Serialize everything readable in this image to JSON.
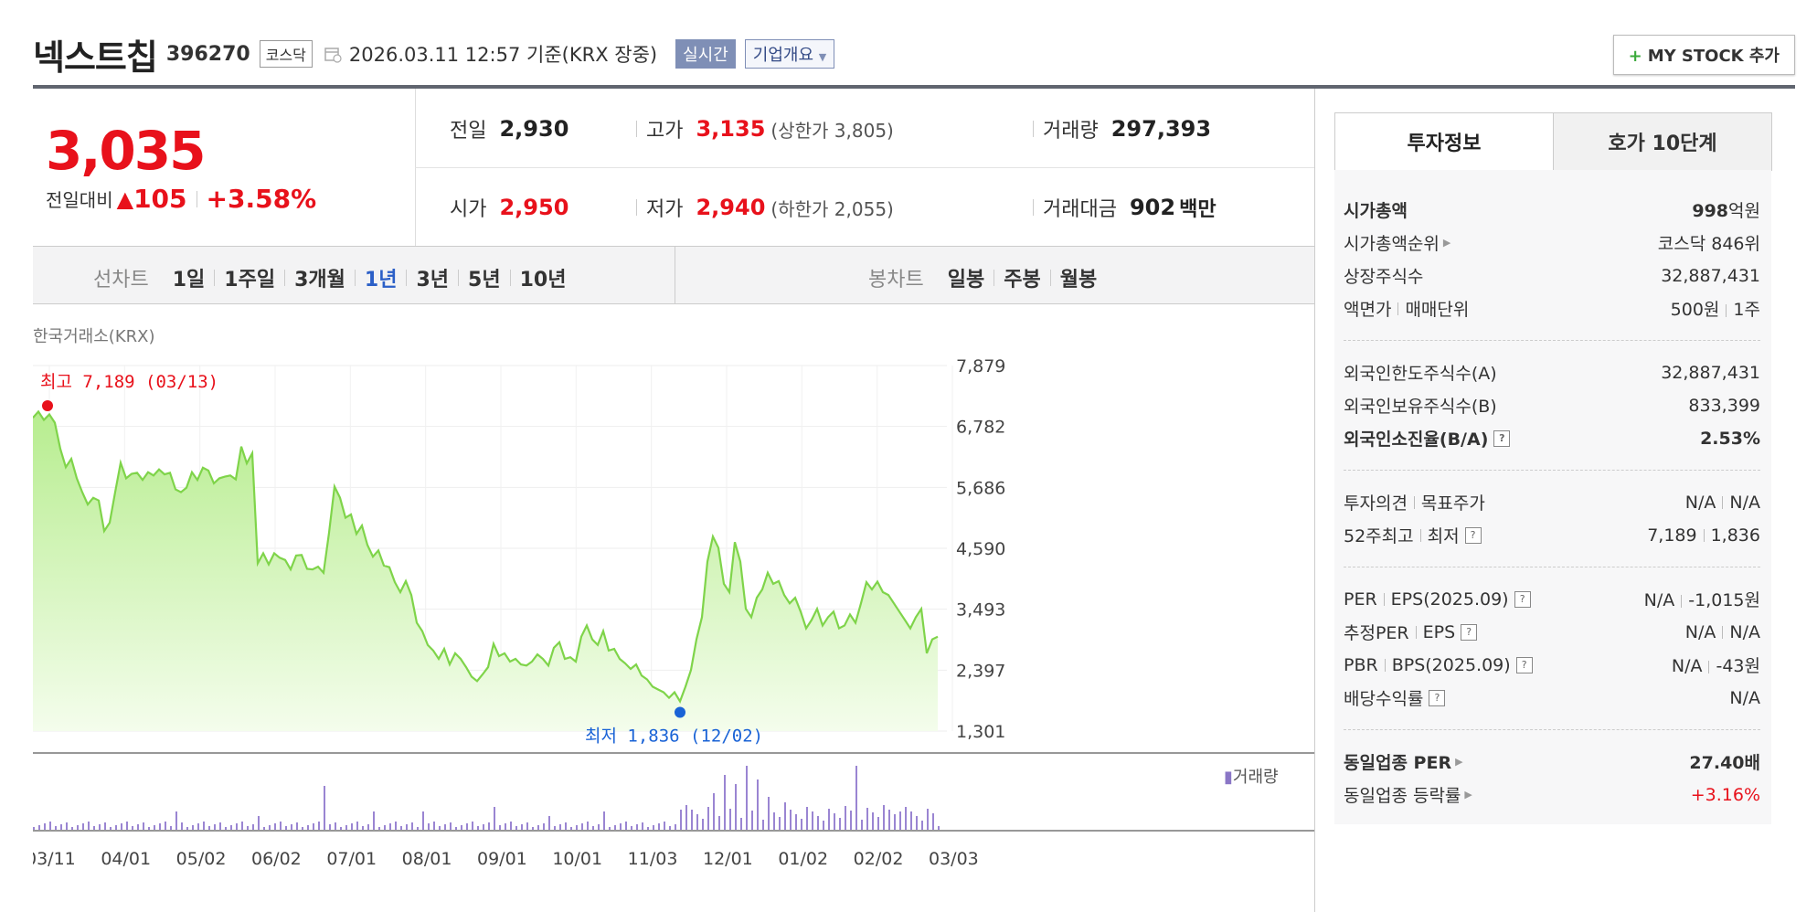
{
  "header": {
    "name": "넥스트칩",
    "code": "396270",
    "market": "코스닥",
    "date": "2026.03.11 12:57",
    "basis": "기준(KRX 장중)",
    "realtime": "실시간",
    "company": "기업개요",
    "mystock_plus": "+",
    "mystock": "MY STOCK 추가"
  },
  "price": {
    "current": "3,035",
    "change_label": "전일대비",
    "change_arrow": "▲",
    "change_amt": "105",
    "change_pct": "+3.58%",
    "prev_label": "전일",
    "prev": "2,930",
    "high_label": "고가",
    "high": "3,135",
    "upper_label": "(상한가",
    "upper": "3,805)",
    "volume_label": "거래량",
    "volume": "297,393",
    "open_label": "시가",
    "open": "2,950",
    "low_label": "저가",
    "low": "2,940",
    "lower_label": "(하한가",
    "lower": "2,055)",
    "amount_label": "거래대금",
    "amount": "902",
    "amount_unit": "백만"
  },
  "periods": {
    "line_label": "선차트",
    "line": [
      "1일",
      "1주일",
      "3개월",
      "1년",
      "3년",
      "5년",
      "10년"
    ],
    "candle_label": "봉차트",
    "candle": [
      "일봉",
      "주봉",
      "월봉"
    ]
  },
  "chart_source": "한국거래소(KRX)",
  "chart_data": {
    "type": "area",
    "y_ticks": [
      "7,879",
      "6,782",
      "5,686",
      "4,590",
      "3,493",
      "2,397",
      "1,301"
    ],
    "ylim": [
      1301,
      7879
    ],
    "x_ticks": [
      "03/11",
      "04/01",
      "05/02",
      "06/02",
      "07/01",
      "08/01",
      "09/01",
      "10/01",
      "11/03",
      "12/01",
      "01/02",
      "02/02",
      "03/03"
    ],
    "max_label": "최고 7,189 (03/13)",
    "min_label": "최저 1,836 (12/02)",
    "volume_legend": "거래량",
    "series": [
      {
        "values": [
          6940,
          7050,
          6900,
          7000,
          6850,
          6380,
          6050,
          6200,
          5850,
          5600,
          5380,
          5500,
          5450,
          4900,
          5050,
          5600,
          6130,
          5850,
          5930,
          5950,
          5820,
          5960,
          5900,
          6010,
          5920,
          5950,
          5650,
          5600,
          5680,
          5960,
          5820,
          6040,
          5990,
          5760,
          5850,
          5880,
          5900,
          5830,
          6420,
          6120,
          6300,
          4320,
          4500,
          4300,
          4500,
          4420,
          4380,
          4210,
          4460,
          4470,
          4220,
          4210,
          4260,
          4150,
          4870,
          5700,
          5500,
          5140,
          5200,
          4850,
          5000,
          4650,
          4440,
          4550,
          4280,
          4250,
          3980,
          3800,
          4000,
          3750,
          3250,
          3100,
          2850,
          2750,
          2600,
          2780,
          2500,
          2700,
          2600,
          2450,
          2280,
          2200,
          2320,
          2450,
          2870,
          2650,
          2700,
          2550,
          2600,
          2500,
          2480,
          2550,
          2680,
          2600,
          2480,
          2800,
          2900,
          2600,
          2630,
          2550,
          3000,
          3200,
          2950,
          2850,
          3100,
          2750,
          2780,
          2600,
          2520,
          2420,
          2500,
          2300,
          2230,
          2100,
          2050,
          2000,
          1900,
          2000,
          1836,
          2100,
          2400,
          2950,
          3350,
          4350,
          4800,
          4600,
          3950,
          3800,
          4700,
          4350,
          3500,
          3350,
          3700,
          3850,
          4150,
          3950,
          4000,
          3750,
          3600,
          3700,
          3450,
          3150,
          3300,
          3500,
          3200,
          3350,
          3450,
          3150,
          3200,
          3400,
          3250,
          3600,
          3980,
          3850,
          3990,
          3800,
          3750,
          3600,
          3450,
          3300,
          3150,
          3350,
          3500,
          2700,
          2950,
          3000
        ]
      }
    ]
  },
  "info": {
    "tab_invest": "투자정보",
    "tab_hoga": "호가 10단계",
    "rows": {
      "mcap_k": "시가총액",
      "mcap_v": "998",
      "mcap_unit": "억원",
      "rank_k": "시가총액순위",
      "rank_v": "코스닥 846위",
      "shares_k": "상장주식수",
      "shares_v": "32,887,431",
      "face_k": "액면가",
      "trade_unit_k": "매매단위",
      "face_v": "500원",
      "trade_unit_v": "1주",
      "foreign_limit_k": "외국인한도주식수(A)",
      "foreign_limit_v": "32,887,431",
      "foreign_hold_k": "외국인보유주식수(B)",
      "foreign_hold_v": "833,399",
      "foreign_rate_k": "외국인소진율(B/A)",
      "foreign_rate_v": "2.53%",
      "opinion_k": "투자의견",
      "target_k": "목표주가",
      "opinion_v": "N/A",
      "target_v": "N/A",
      "w52_k": "52주최고",
      "w52_low_k": "최저",
      "w52_hi_v": "7,189",
      "w52_lo_v": "1,836",
      "per_k": "PER",
      "eps_k": "EPS",
      "eps_period": "(2025.09)",
      "per_v": "N/A",
      "eps_v": "-1,015원",
      "eper_k": "추정PER",
      "eeps_k": "EPS",
      "eper_v": "N/A",
      "eeps_v": "N/A",
      "pbr_k": "PBR",
      "bps_k": "BPS",
      "bps_period": "(2025.09)",
      "pbr_v": "N/A",
      "bps_v": "-43원",
      "div_k": "배당수익률",
      "div_v": "N/A",
      "ind_per_k": "동일업종 PER",
      "ind_per_v": "27.40배",
      "ind_chg_k": "동일업종 등락률",
      "ind_chg_v": "+3.16%"
    }
  }
}
